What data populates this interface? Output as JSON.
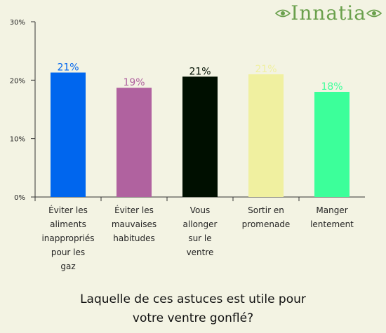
{
  "brand": {
    "logo_text": "Innatia"
  },
  "question": {
    "line1": "Laquelle de ces astuces est utile pour",
    "line2": "votre ventre gonflé?"
  },
  "chart_data": {
    "type": "bar",
    "categories": [
      "Éviter les aliments inappropriés pour les gaz",
      "Éviter les mauvaises habitudes",
      "Vous allonger sur le ventre",
      "Sortir en promenade",
      "Manger lentement"
    ],
    "category_lines": [
      [
        "Éviter les",
        "aliments",
        "inappropriés",
        "pour les",
        "gaz"
      ],
      [
        "Éviter les",
        "mauvaises",
        "habitudes"
      ],
      [
        "Vous",
        "allonger",
        "sur le",
        "ventre"
      ],
      [
        "Sortir en",
        "promenade"
      ],
      [
        "Manger",
        "lentement"
      ]
    ],
    "values": [
      21.3,
      18.7,
      20.6,
      21.0,
      18.0
    ],
    "data_labels": [
      "21%",
      "19%",
      "21%",
      "21%",
      "18%"
    ],
    "colors": [
      "#0066ee",
      "#b0629f",
      "#000f00",
      "#f0f0a0",
      "#3cff9a"
    ],
    "yticks": [
      "0%",
      "10%",
      "20%",
      "30%"
    ],
    "ylim": [
      0,
      30
    ],
    "grid": false,
    "legend": "none"
  }
}
